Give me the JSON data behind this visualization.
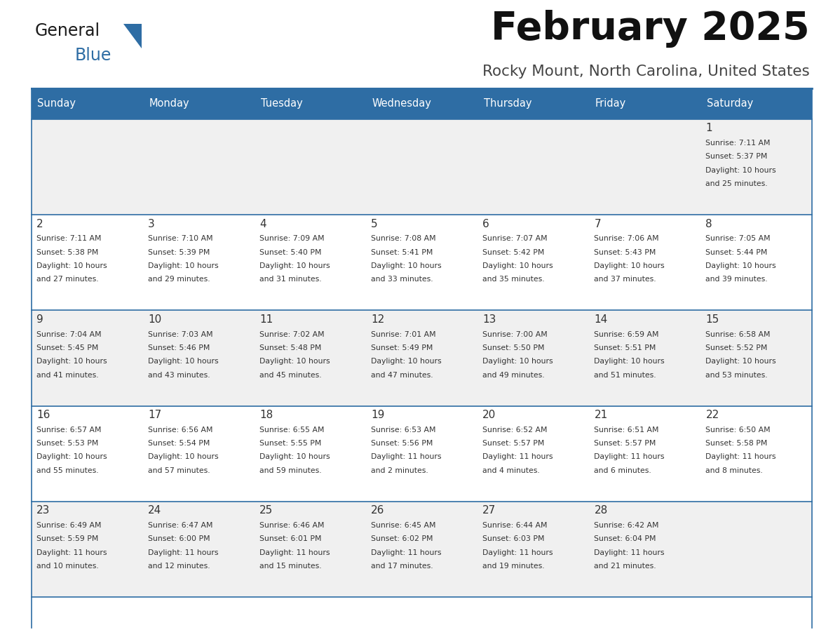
{
  "title": "February 2025",
  "subtitle": "Rocky Mount, North Carolina, United States",
  "header_color": "#2e6da4",
  "header_text_color": "#ffffff",
  "cell_bg_even": "#f0f0f0",
  "cell_bg_odd": "#ffffff",
  "border_color": "#2e6da4",
  "text_color": "#333333",
  "day_names": [
    "Sunday",
    "Monday",
    "Tuesday",
    "Wednesday",
    "Thursday",
    "Friday",
    "Saturday"
  ],
  "logo_general_color": "#1a1a1a",
  "logo_blue_color": "#2e6da4",
  "logo_triangle_color": "#2e6da4",
  "days": [
    {
      "day": 1,
      "col": 6,
      "row": 0,
      "sunrise": "7:11 AM",
      "sunset": "5:37 PM",
      "daylight": "10 hours and 25 minutes."
    },
    {
      "day": 2,
      "col": 0,
      "row": 1,
      "sunrise": "7:11 AM",
      "sunset": "5:38 PM",
      "daylight": "10 hours and 27 minutes."
    },
    {
      "day": 3,
      "col": 1,
      "row": 1,
      "sunrise": "7:10 AM",
      "sunset": "5:39 PM",
      "daylight": "10 hours and 29 minutes."
    },
    {
      "day": 4,
      "col": 2,
      "row": 1,
      "sunrise": "7:09 AM",
      "sunset": "5:40 PM",
      "daylight": "10 hours and 31 minutes."
    },
    {
      "day": 5,
      "col": 3,
      "row": 1,
      "sunrise": "7:08 AM",
      "sunset": "5:41 PM",
      "daylight": "10 hours and 33 minutes."
    },
    {
      "day": 6,
      "col": 4,
      "row": 1,
      "sunrise": "7:07 AM",
      "sunset": "5:42 PM",
      "daylight": "10 hours and 35 minutes."
    },
    {
      "day": 7,
      "col": 5,
      "row": 1,
      "sunrise": "7:06 AM",
      "sunset": "5:43 PM",
      "daylight": "10 hours and 37 minutes."
    },
    {
      "day": 8,
      "col": 6,
      "row": 1,
      "sunrise": "7:05 AM",
      "sunset": "5:44 PM",
      "daylight": "10 hours and 39 minutes."
    },
    {
      "day": 9,
      "col": 0,
      "row": 2,
      "sunrise": "7:04 AM",
      "sunset": "5:45 PM",
      "daylight": "10 hours and 41 minutes."
    },
    {
      "day": 10,
      "col": 1,
      "row": 2,
      "sunrise": "7:03 AM",
      "sunset": "5:46 PM",
      "daylight": "10 hours and 43 minutes."
    },
    {
      "day": 11,
      "col": 2,
      "row": 2,
      "sunrise": "7:02 AM",
      "sunset": "5:48 PM",
      "daylight": "10 hours and 45 minutes."
    },
    {
      "day": 12,
      "col": 3,
      "row": 2,
      "sunrise": "7:01 AM",
      "sunset": "5:49 PM",
      "daylight": "10 hours and 47 minutes."
    },
    {
      "day": 13,
      "col": 4,
      "row": 2,
      "sunrise": "7:00 AM",
      "sunset": "5:50 PM",
      "daylight": "10 hours and 49 minutes."
    },
    {
      "day": 14,
      "col": 5,
      "row": 2,
      "sunrise": "6:59 AM",
      "sunset": "5:51 PM",
      "daylight": "10 hours and 51 minutes."
    },
    {
      "day": 15,
      "col": 6,
      "row": 2,
      "sunrise": "6:58 AM",
      "sunset": "5:52 PM",
      "daylight": "10 hours and 53 minutes."
    },
    {
      "day": 16,
      "col": 0,
      "row": 3,
      "sunrise": "6:57 AM",
      "sunset": "5:53 PM",
      "daylight": "10 hours and 55 minutes."
    },
    {
      "day": 17,
      "col": 1,
      "row": 3,
      "sunrise": "6:56 AM",
      "sunset": "5:54 PM",
      "daylight": "10 hours and 57 minutes."
    },
    {
      "day": 18,
      "col": 2,
      "row": 3,
      "sunrise": "6:55 AM",
      "sunset": "5:55 PM",
      "daylight": "10 hours and 59 minutes."
    },
    {
      "day": 19,
      "col": 3,
      "row": 3,
      "sunrise": "6:53 AM",
      "sunset": "5:56 PM",
      "daylight": "11 hours and 2 minutes."
    },
    {
      "day": 20,
      "col": 4,
      "row": 3,
      "sunrise": "6:52 AM",
      "sunset": "5:57 PM",
      "daylight": "11 hours and 4 minutes."
    },
    {
      "day": 21,
      "col": 5,
      "row": 3,
      "sunrise": "6:51 AM",
      "sunset": "5:57 PM",
      "daylight": "11 hours and 6 minutes."
    },
    {
      "day": 22,
      "col": 6,
      "row": 3,
      "sunrise": "6:50 AM",
      "sunset": "5:58 PM",
      "daylight": "11 hours and 8 minutes."
    },
    {
      "day": 23,
      "col": 0,
      "row": 4,
      "sunrise": "6:49 AM",
      "sunset": "5:59 PM",
      "daylight": "11 hours and 10 minutes."
    },
    {
      "day": 24,
      "col": 1,
      "row": 4,
      "sunrise": "6:47 AM",
      "sunset": "6:00 PM",
      "daylight": "11 hours and 12 minutes."
    },
    {
      "day": 25,
      "col": 2,
      "row": 4,
      "sunrise": "6:46 AM",
      "sunset": "6:01 PM",
      "daylight": "11 hours and 15 minutes."
    },
    {
      "day": 26,
      "col": 3,
      "row": 4,
      "sunrise": "6:45 AM",
      "sunset": "6:02 PM",
      "daylight": "11 hours and 17 minutes."
    },
    {
      "day": 27,
      "col": 4,
      "row": 4,
      "sunrise": "6:44 AM",
      "sunset": "6:03 PM",
      "daylight": "11 hours and 19 minutes."
    },
    {
      "day": 28,
      "col": 5,
      "row": 4,
      "sunrise": "6:42 AM",
      "sunset": "6:04 PM",
      "daylight": "11 hours and 21 minutes."
    }
  ]
}
